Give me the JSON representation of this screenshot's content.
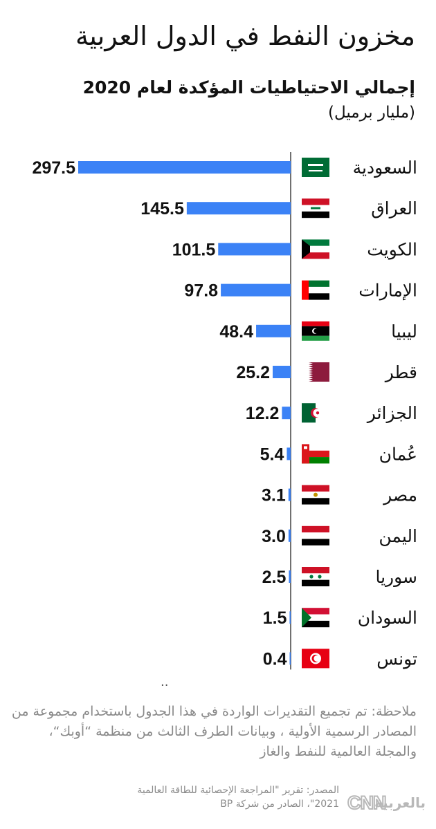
{
  "title": "مخزون  النفط في الدول العربية",
  "subtitle": "إجمالي الاحتياطيات المؤكدة لعام 2020",
  "unit": "(مليار برميل)",
  "chart_data": {
    "type": "bar",
    "orientation": "horizontal",
    "title": "إجمالي الاحتياطيات المؤكدة لعام 2020",
    "ylabel": "(مليار برميل)",
    "categories": [
      "السعودية",
      "العراق",
      "الكويت",
      "الإمارات",
      "ليبيا",
      "قطر",
      "الجزائر",
      "عُمان",
      "مصر",
      "اليمن",
      "سوريا",
      "السودان",
      "تونس"
    ],
    "values": [
      297.5,
      145.5,
      101.5,
      97.8,
      48.4,
      25.2,
      12.2,
      5.4,
      3.1,
      3.0,
      2.5,
      1.5,
      0.4
    ],
    "value_labels": [
      "297.5",
      "145.5",
      "101.5",
      "97.8",
      "48.4",
      "25.2",
      "12.2",
      "5.4",
      "3.1",
      "3.0",
      "2.5",
      "1.5",
      "0.4"
    ],
    "flags": [
      "saudi-flag-icon",
      "iraq-flag-icon",
      "kuwait-flag-icon",
      "uae-flag-icon",
      "libya-flag-icon",
      "qatar-flag-icon",
      "algeria-flag-icon",
      "oman-flag-icon",
      "egypt-flag-icon",
      "yemen-flag-icon",
      "syria-flag-icon",
      "sudan-flag-icon",
      "tunisia-flag-icon"
    ],
    "bar_color": "#3b82f6",
    "xlim": [
      0,
      297.5
    ],
    "grid": false
  },
  "quote_mark": "..",
  "note": "ملاحظة: تم تجميع التقديرات الواردة في هذا الجدول باستخدام مجموعة من المصادر الرسمية الأولية ، وبيانات الطرف الثالث من منظمة “أوبك“، والمجلة العالمية للنفط والغاز",
  "source_line1": "المصدر: تقرير \"المراجعة الإحصائية للطاقة العالمية",
  "source_line2": "2021\"، الصادر من شركة BP",
  "logo_text": "CNN بالعربية"
}
